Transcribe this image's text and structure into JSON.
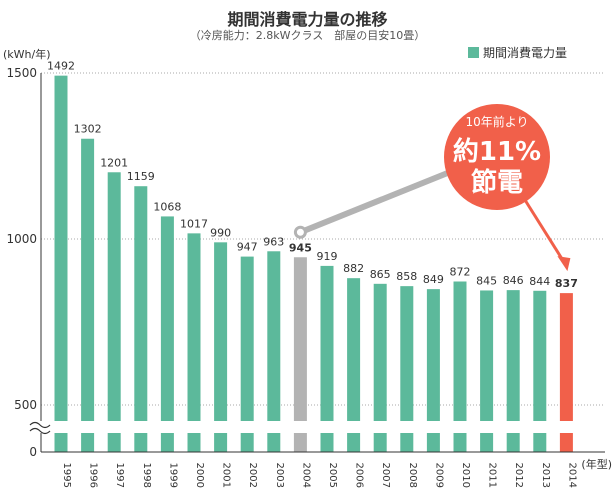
{
  "title": "期間消費電力量の推移",
  "subtitle": "（冷房能力：2.8kWクラス　部屋の目安10畳）",
  "colors": {
    "bar": "#5cb99b",
    "highlight_old": "#b3b3b3",
    "highlight_new": "#f1604a",
    "callout": "#f1604a",
    "connector": "#b3b3b3"
  },
  "chart_data": {
    "type": "bar",
    "title": "期間消費電力量の推移",
    "ylabel": "(kWh/年)",
    "xlabel": "(年型)",
    "ylim": [
      0,
      1500
    ],
    "axis_break": true,
    "yticks": [
      0,
      500,
      1000,
      1500
    ],
    "legend": "期間消費電力量",
    "legend_position": "top-right",
    "categories": [
      "1995",
      "1996",
      "1997",
      "1998",
      "1999",
      "2000",
      "2001",
      "2002",
      "2003",
      "2004",
      "2005",
      "2006",
      "2007",
      "2008",
      "2009",
      "2010",
      "2011",
      "2012",
      "2013",
      "2014"
    ],
    "values": [
      1492,
      1302,
      1201,
      1159,
      1068,
      1017,
      990,
      947,
      963,
      945,
      919,
      882,
      865,
      858,
      849,
      872,
      845,
      846,
      844,
      837
    ],
    "highlight": {
      "from": "2004",
      "to": "2014"
    },
    "annotation": {
      "line1": "10年前より",
      "line2": "約11%",
      "line3": "節電"
    }
  }
}
